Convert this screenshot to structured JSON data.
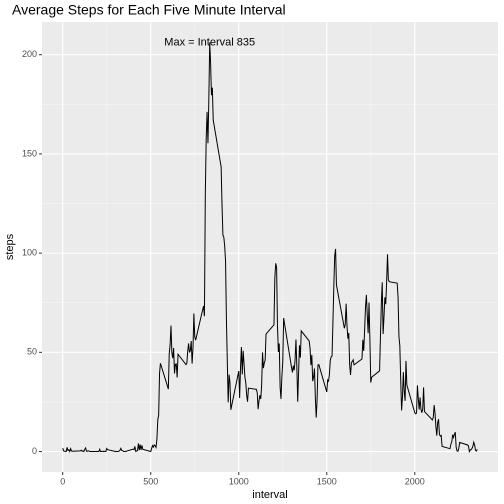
{
  "chart_data": {
    "type": "line",
    "title": "Average Steps for Each Five Minute Interval",
    "x_label": "interval",
    "y_label": "steps",
    "annotation": {
      "text": "Max = Interval 835",
      "x": 835,
      "y": 206.17
    },
    "color": "#000000",
    "grid": true,
    "xlim": [
      -117.75,
      2472.75
    ],
    "xticks": [
      0,
      500,
      1000,
      1500,
      2000
    ],
    "ylim": [
      -10.31,
      216.48
    ],
    "yticks": [
      0,
      50,
      100,
      150,
      200
    ],
    "x": [
      0,
      5,
      10,
      15,
      20,
      25,
      30,
      35,
      40,
      45,
      50,
      55,
      100,
      105,
      110,
      115,
      120,
      125,
      130,
      135,
      140,
      145,
      150,
      155,
      200,
      205,
      210,
      215,
      220,
      225,
      230,
      235,
      240,
      245,
      250,
      255,
      300,
      305,
      310,
      315,
      320,
      325,
      330,
      335,
      340,
      345,
      350,
      355,
      400,
      405,
      410,
      415,
      420,
      425,
      430,
      435,
      440,
      445,
      450,
      455,
      500,
      505,
      510,
      515,
      520,
      525,
      530,
      535,
      540,
      545,
      550,
      555,
      600,
      605,
      610,
      615,
      620,
      625,
      630,
      635,
      640,
      645,
      650,
      655,
      700,
      705,
      710,
      715,
      720,
      725,
      730,
      735,
      740,
      745,
      750,
      755,
      800,
      805,
      810,
      815,
      820,
      825,
      830,
      835,
      840,
      845,
      850,
      855,
      900,
      905,
      910,
      915,
      920,
      925,
      930,
      935,
      940,
      945,
      950,
      955,
      1000,
      1005,
      1010,
      1015,
      1020,
      1025,
      1030,
      1035,
      1040,
      1045,
      1050,
      1055,
      1100,
      1105,
      1110,
      1115,
      1120,
      1125,
      1130,
      1135,
      1140,
      1145,
      1150,
      1155,
      1200,
      1205,
      1210,
      1215,
      1220,
      1225,
      1230,
      1235,
      1240,
      1245,
      1250,
      1255,
      1300,
      1305,
      1310,
      1315,
      1320,
      1325,
      1330,
      1335,
      1340,
      1345,
      1350,
      1355,
      1400,
      1405,
      1410,
      1415,
      1420,
      1425,
      1430,
      1435,
      1440,
      1445,
      1450,
      1455,
      1500,
      1505,
      1510,
      1515,
      1520,
      1525,
      1530,
      1535,
      1540,
      1545,
      1550,
      1555,
      1600,
      1605,
      1610,
      1615,
      1620,
      1625,
      1630,
      1635,
      1640,
      1645,
      1650,
      1655,
      1700,
      1705,
      1710,
      1715,
      1720,
      1725,
      1730,
      1735,
      1740,
      1745,
      1750,
      1755,
      1800,
      1805,
      1810,
      1815,
      1820,
      1825,
      1830,
      1835,
      1840,
      1845,
      1850,
      1855,
      1900,
      1905,
      1910,
      1915,
      1920,
      1925,
      1930,
      1935,
      1940,
      1945,
      1950,
      1955,
      2000,
      2005,
      2010,
      2015,
      2020,
      2025,
      2030,
      2035,
      2040,
      2045,
      2050,
      2055,
      2100,
      2105,
      2110,
      2115,
      2120,
      2125,
      2130,
      2135,
      2140,
      2145,
      2150,
      2155,
      2200,
      2205,
      2210,
      2215,
      2220,
      2225,
      2230,
      2235,
      2240,
      2245,
      2250,
      2255,
      2300,
      2305,
      2310,
      2315,
      2320,
      2325,
      2330,
      2335,
      2340,
      2345,
      2350,
      2355
    ],
    "values": [
      1.72,
      0.34,
      0.13,
      0.15,
      0.08,
      2.09,
      0.53,
      0.87,
      0,
      1.47,
      0.3,
      0.13,
      0.32,
      0.68,
      0.15,
      0.34,
      0,
      1.11,
      1.83,
      0.17,
      0.17,
      0.38,
      0.26,
      0,
      0,
      0,
      1.13,
      0,
      0,
      0.13,
      0,
      0.23,
      0,
      0,
      1.55,
      0.94,
      0,
      0,
      0,
      0,
      0.21,
      0.62,
      1.62,
      0.58,
      0.49,
      0.08,
      0,
      0,
      1.19,
      0.94,
      2.57,
      0,
      0.34,
      0.36,
      4.11,
      0.66,
      3.49,
      0.83,
      3.11,
      1.11,
      0,
      1.57,
      3,
      2.25,
      3.32,
      2.96,
      2.09,
      6.06,
      16.02,
      18.34,
      39.45,
      44.49,
      31.49,
      49.26,
      53.77,
      63.45,
      49.96,
      47.08,
      52.15,
      39.34,
      44.02,
      44.17,
      37.36,
      49.04,
      43.81,
      44.38,
      50.51,
      54.51,
      49.92,
      50.98,
      55.68,
      44.32,
      52.26,
      69.55,
      57.85,
      56.15,
      73.38,
      68.21,
      129.43,
      157.53,
      171.15,
      155.4,
      177.3,
      206.17,
      195.92,
      179.57,
      183.4,
      167.02,
      143.45,
      124.04,
      109.11,
      108.11,
      103.72,
      95.96,
      66.21,
      45.23,
      24.79,
      38.75,
      34.98,
      21.06,
      40.57,
      26.98,
      42.42,
      52.66,
      38.92,
      50.79,
      44.28,
      37.42,
      34.7,
      28.34,
      25.09,
      31.94,
      31.36,
      29.68,
      21.32,
      25.55,
      28.38,
      26.47,
      33.43,
      49.98,
      42.04,
      44.6,
      46.04,
      59.19,
      63.87,
      87.7,
      94.85,
      92.77,
      63.4,
      50.17,
      54.47,
      32.42,
      26.53,
      37.74,
      45.06,
      67.28,
      42.34,
      39.89,
      43.26,
      40.98,
      46.25,
      56.43,
      42.75,
      25.13,
      39.96,
      53.55,
      47.32,
      60.81,
      55.75,
      51.96,
      43.58,
      48.7,
      35.47,
      37.55,
      41.85,
      27.51,
      17.11,
      26.08,
      43.62,
      43.77,
      30.02,
      36.08,
      35.49,
      38.85,
      45.96,
      47.75,
      48.13,
      65.32,
      82.91,
      98.66,
      102.11,
      83.96,
      62.13,
      64.13,
      74.55,
      63.17,
      56.91,
      59.77,
      43.87,
      38.57,
      44.66,
      45.45,
      46.21,
      43.68,
      46.62,
      56.3,
      50.72,
      61.23,
      72.72,
      78.94,
      68.94,
      59.66,
      75.09,
      56.51,
      34.77,
      37.45,
      40.68,
      58.02,
      74.7,
      85.32,
      59.26,
      67.77,
      77.7,
      74.25,
      85.34,
      99.45,
      86.58,
      85.6,
      84.87,
      77.83,
      58.04,
      53.36,
      36.32,
      20.72,
      27.4,
      40.02,
      30.21,
      25.55,
      45.66,
      33.53,
      19.62,
      19.02,
      19.34,
      33.34,
      26.81,
      21.17,
      27.3,
      21.34,
      19.55,
      21.32,
      32.3,
      20.15,
      15.94,
      17.23,
      23.45,
      19.25,
      12.45,
      8.02,
      14.66,
      16.3,
      8.68,
      7.79,
      8.13,
      2.62,
      1.45,
      3.68,
      4.81,
      8.51,
      7.08,
      8.7,
      9.75,
      2.21,
      0.32,
      0.11,
      1.6,
      4.6,
      3.3,
      2.85,
      0,
      0.83,
      0.96,
      1.58,
      2.6,
      4.7,
      3.3,
      0.64,
      0.23,
      1.08
    ]
  }
}
